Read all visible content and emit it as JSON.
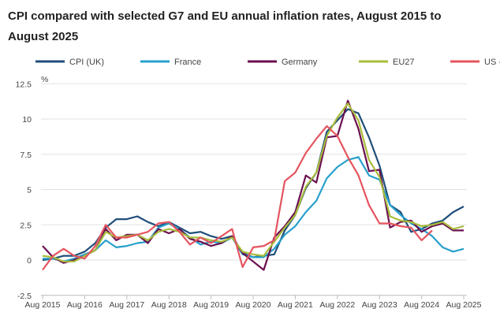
{
  "chart_data": {
    "type": "line",
    "title": "CPI compared with selected G7 and EU annual inflation rates, August 2015 to August 2025",
    "ylabel": "%",
    "ylim": [
      -2.5,
      12.5
    ],
    "yticks": [
      "12.5",
      "10",
      "7.5",
      "5",
      "2.5",
      "0",
      "-2.5"
    ],
    "ytick_values": [
      12.5,
      10,
      7.5,
      5,
      2.5,
      0,
      -2.5
    ],
    "xticks": [
      "Aug 2015",
      "Aug 2016",
      "Aug 2017",
      "Aug 2018",
      "Aug 2019",
      "Aug 2020",
      "Aug 2021",
      "Aug 2022",
      "Aug 2023",
      "Aug 2024",
      "Aug 2025"
    ],
    "x_sampling": "quarterly, Aug 2015 to Aug 2025",
    "grid": "horizontal",
    "legend_position": "top",
    "series": [
      {
        "name": "CPI (UK)",
        "color": "#1f4e79",
        "values": [
          0.0,
          0.1,
          0.3,
          0.3,
          0.6,
          1.2,
          2.3,
          2.9,
          2.9,
          3.1,
          2.7,
          2.4,
          2.7,
          2.3,
          1.9,
          2.0,
          1.7,
          1.5,
          1.7,
          0.5,
          0.2,
          0.3,
          0.4,
          2.1,
          3.2,
          5.1,
          6.2,
          9.1,
          9.9,
          10.7,
          10.4,
          8.7,
          6.7,
          3.9,
          3.4,
          2.0,
          2.2,
          2.6,
          2.8,
          3.4,
          3.8
        ]
      },
      {
        "name": "France",
        "color": "#27a0cc",
        "values": [
          0.1,
          0.1,
          -0.1,
          0.1,
          0.4,
          0.7,
          1.4,
          0.9,
          1.0,
          1.2,
          1.3,
          2.3,
          2.6,
          2.2,
          1.6,
          1.1,
          1.3,
          1.2,
          1.6,
          0.4,
          0.2,
          0.2,
          0.8,
          1.8,
          2.4,
          3.4,
          4.2,
          5.8,
          6.6,
          7.1,
          7.3,
          6.0,
          5.7,
          3.9,
          3.2,
          2.6,
          2.2,
          1.7,
          0.9,
          0.6,
          0.8
        ]
      },
      {
        "name": "Germany",
        "color": "#6b0f4f",
        "values": [
          1.0,
          0.2,
          -0.2,
          0.0,
          0.3,
          0.7,
          2.2,
          1.4,
          1.8,
          1.8,
          1.2,
          2.2,
          1.9,
          2.2,
          1.5,
          1.3,
          1.0,
          1.2,
          1.7,
          0.5,
          -0.1,
          -0.7,
          1.6,
          2.4,
          3.4,
          6.0,
          5.5,
          8.7,
          8.8,
          11.3,
          9.3,
          6.3,
          6.4,
          2.3,
          2.7,
          2.8,
          2.0,
          2.4,
          2.6,
          2.1,
          2.1
        ]
      },
      {
        "name": "EU27",
        "color": "#a8bd3a",
        "values": [
          0.3,
          0.2,
          -0.1,
          -0.1,
          0.3,
          0.7,
          2.0,
          1.6,
          1.7,
          1.8,
          1.4,
          2.0,
          2.2,
          2.0,
          1.6,
          1.6,
          1.4,
          1.3,
          1.6,
          0.6,
          0.4,
          0.3,
          1.3,
          2.3,
          3.2,
          5.2,
          6.2,
          8.8,
          10.1,
          11.1,
          9.9,
          7.1,
          5.9,
          3.1,
          2.8,
          2.7,
          2.4,
          2.5,
          2.7,
          2.2,
          2.4
        ]
      },
      {
        "name": "US - HICP",
        "color": "#e5545e",
        "values": [
          -0.7,
          0.3,
          0.8,
          0.3,
          0.1,
          1.0,
          2.5,
          1.6,
          1.6,
          1.8,
          2.0,
          2.6,
          2.7,
          2.0,
          1.1,
          1.6,
          1.2,
          1.7,
          2.2,
          -0.5,
          0.9,
          1.0,
          1.4,
          5.6,
          6.2,
          7.6,
          8.6,
          9.5,
          8.8,
          7.3,
          6.0,
          3.9,
          2.6,
          2.6,
          2.4,
          2.3,
          1.4,
          2.1,
          null,
          null,
          null
        ]
      }
    ]
  }
}
